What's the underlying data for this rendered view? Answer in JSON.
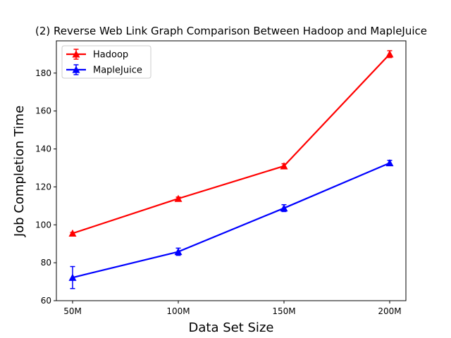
{
  "chart_data": {
    "type": "line",
    "title": "(2) Reverse Web Link Graph Comparison Between Hadoop and MapleJuice",
    "xlabel": "Data Set Size",
    "ylabel": "Job Completion Time",
    "categories": [
      "50M",
      "100M",
      "150M",
      "200M"
    ],
    "ylim": [
      60,
      197
    ],
    "yticks": [
      60,
      80,
      100,
      120,
      140,
      160,
      180
    ],
    "grid": false,
    "legend_position": "upper-left",
    "series": [
      {
        "name": "Hadoop",
        "color": "#ff0000",
        "marker": "triangle",
        "values": [
          95.5,
          113.8,
          131.0,
          190.0
        ],
        "error": [
          0.5,
          0.8,
          1.2,
          1.8
        ]
      },
      {
        "name": "MapleJuice",
        "color": "#0000ff",
        "marker": "triangle",
        "values": [
          72.2,
          85.8,
          108.8,
          132.6
        ],
        "error": [
          5.8,
          1.9,
          1.8,
          1.4
        ]
      }
    ]
  }
}
